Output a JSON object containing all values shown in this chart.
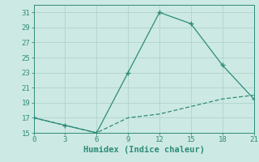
{
  "xlabel": "Humidex (Indice chaleur)",
  "x_series1": [
    0,
    3,
    6,
    9,
    12,
    15,
    18,
    21
  ],
  "y_series1": [
    17,
    16,
    15,
    23,
    31,
    29.5,
    24,
    19.5
  ],
  "x_series2": [
    0,
    3,
    6,
    9,
    12,
    15,
    18,
    21
  ],
  "y_series2": [
    17,
    16,
    15,
    17,
    17.5,
    18.5,
    19.5,
    20
  ],
  "line_color": "#2d8b78",
  "bg_color": "#cde9e4",
  "grid_color": "#b4d5cf",
  "xlim": [
    0,
    21
  ],
  "ylim": [
    15,
    32
  ],
  "xticks": [
    0,
    3,
    6,
    9,
    12,
    15,
    18,
    21
  ],
  "yticks": [
    15,
    17,
    19,
    21,
    23,
    25,
    27,
    29,
    31
  ],
  "tick_fontsize": 6.5,
  "xlabel_fontsize": 7.5
}
